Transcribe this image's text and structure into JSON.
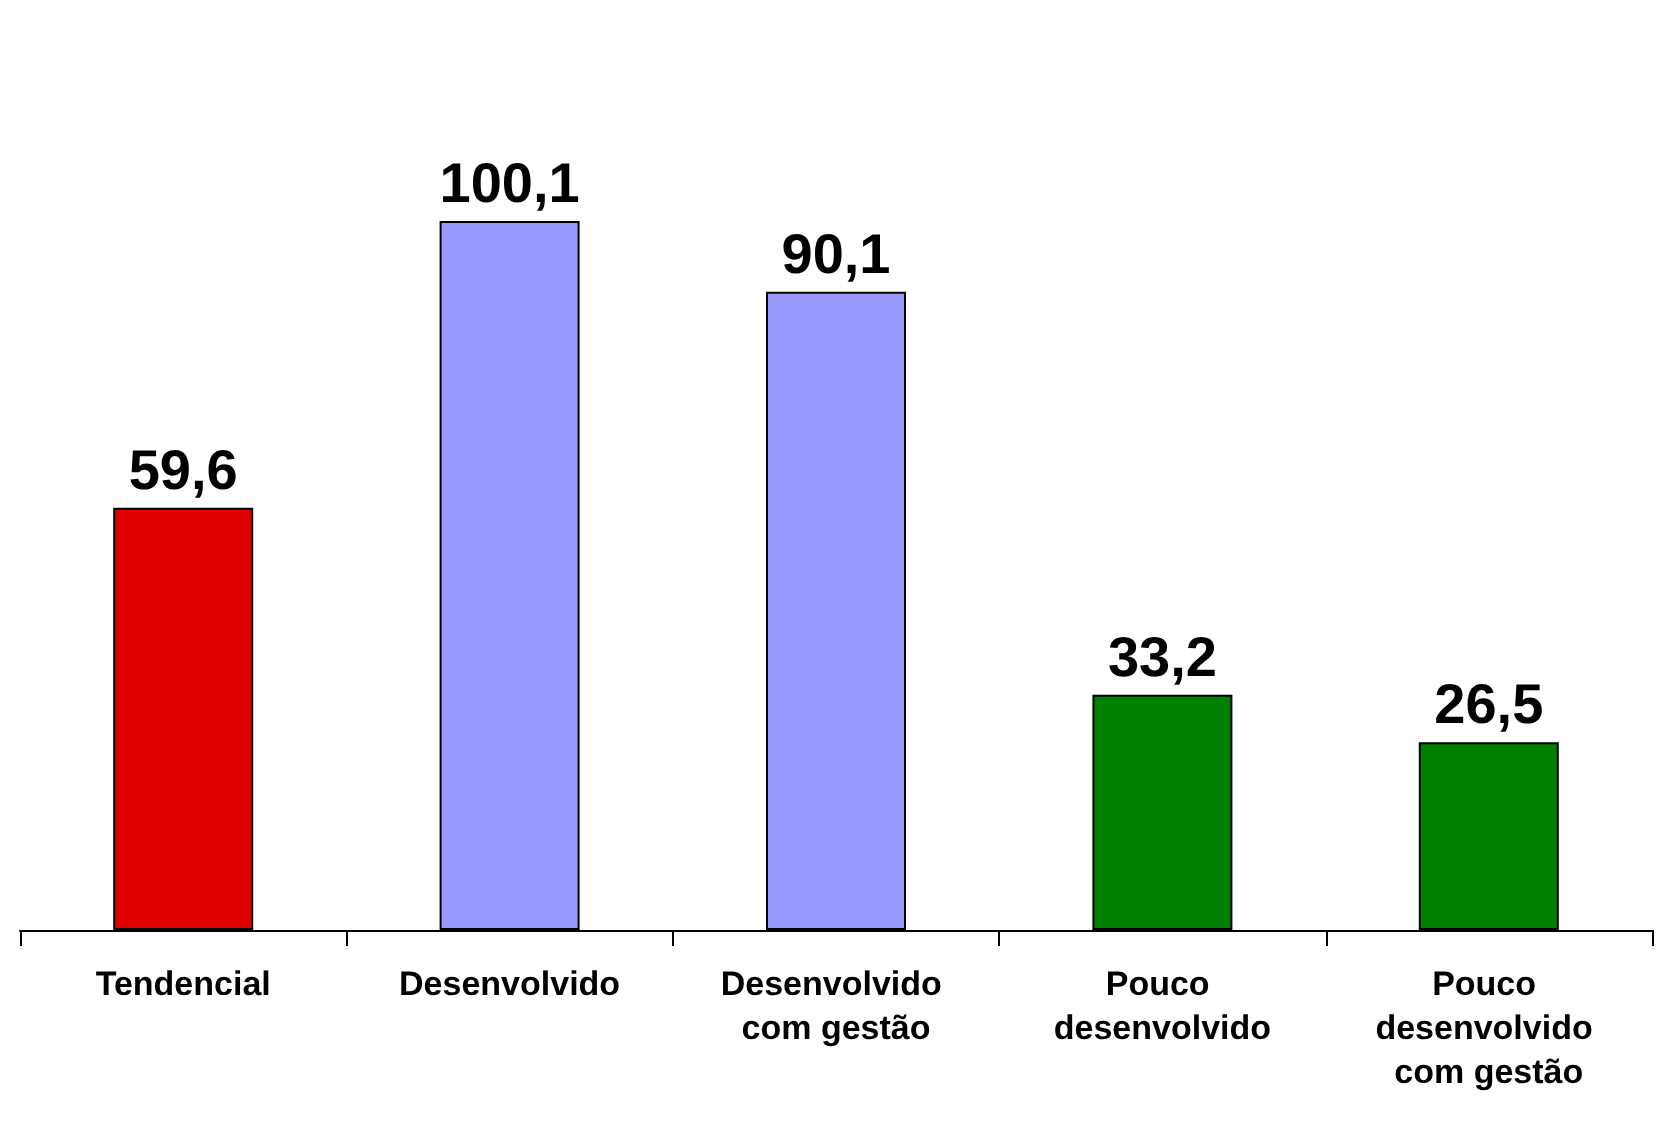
{
  "chart_data": {
    "type": "bar",
    "categories": [
      "Tendencial",
      "Desenvolvido",
      "Desenvolvido com gestão",
      "Pouco desenvolvido",
      "Pouco desenvolvido com gestão"
    ],
    "values": [
      59.6,
      100.1,
      90.1,
      33.2,
      26.5
    ],
    "colors": [
      "#e00000",
      "#9999ff",
      "#9999ff",
      "#008000",
      "#008000"
    ],
    "value_labels": [
      "59,6",
      "100,1",
      "90,1",
      "33,2",
      "26,5"
    ]
  }
}
